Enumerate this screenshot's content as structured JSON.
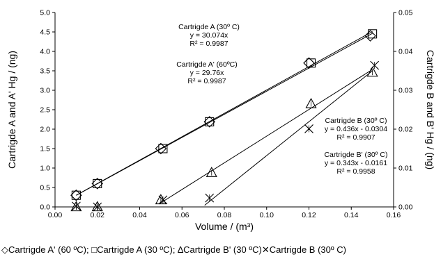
{
  "chart_data": {
    "type": "scatter",
    "title": "",
    "xlabel": "Volume / (m³)",
    "ylabel": "Cartrigde A and A' Hg / (ng)",
    "y2label": "Cartrigde B and B' Hg / (ng)",
    "xlim": [
      0,
      0.16
    ],
    "ylim": [
      0,
      5.0
    ],
    "y2lim": [
      0,
      0.05
    ],
    "x_ticks": [
      "0.00",
      "0.02",
      "0.04",
      "0.06",
      "0.08",
      "0.10",
      "0.12",
      "0.14",
      "0.16"
    ],
    "y_ticks": [
      "0.0",
      "0.5",
      "1.0",
      "1.5",
      "2.0",
      "2.5",
      "3.0",
      "3.5",
      "4.0",
      "4.5",
      "5.0"
    ],
    "y2_ticks": [
      "0.00",
      "0.01",
      "0.02",
      "0.03",
      "0.04",
      "0.05"
    ],
    "grid": false,
    "legend_position": "bottom",
    "series": [
      {
        "name": "Cartrigde A' (60 ºC)",
        "marker": "diamond",
        "axis": "left",
        "x": [
          0.01,
          0.02,
          0.05,
          0.073,
          0.12,
          0.149
        ],
        "y": [
          0.3,
          0.6,
          1.5,
          2.19,
          3.7,
          4.4
        ],
        "trend": {
          "slope": 29.76,
          "intercept": 0,
          "x_range": [
            0.01,
            0.15
          ]
        }
      },
      {
        "name": "Cartrigde A (30 ºC)",
        "marker": "square",
        "axis": "left",
        "x": [
          0.01,
          0.02,
          0.051,
          0.073,
          0.121,
          0.15
        ],
        "y": [
          0.3,
          0.6,
          1.5,
          2.19,
          3.7,
          4.45
        ],
        "trend": {
          "slope": 30.074,
          "intercept": 0,
          "x_range": [
            0.01,
            0.15
          ]
        }
      },
      {
        "name": "Cartrigde B' (30 ºC)",
        "marker": "triangle",
        "axis": "right",
        "x": [
          0.01,
          0.02,
          0.05,
          0.074,
          0.121,
          0.15
        ],
        "y": [
          0.0,
          0.0,
          0.0018,
          0.0088,
          0.0265,
          0.0346
        ],
        "trend": {
          "slope": 0.343,
          "intercept": -0.0161,
          "x_range": [
            0.0496,
            0.15
          ]
        }
      },
      {
        "name": "Cartrigde B (30º C)",
        "marker": "x",
        "axis": "right",
        "x": [
          0.01,
          0.02,
          0.051,
          0.073,
          0.12,
          0.151
        ],
        "y": [
          0.0002,
          0.0,
          0.0018,
          0.0023,
          0.0201,
          0.0364
        ],
        "trend": {
          "slope": 0.436,
          "intercept": -0.0304,
          "x_range": [
            0.0707,
            0.15
          ]
        }
      }
    ],
    "annotations": [
      {
        "lines": [
          "Cartrigde A (30º C)",
          "y = 30.074x",
          "R² = 0.9987"
        ]
      },
      {
        "lines": [
          "Cartrigde A' (60ºC)",
          "y = 29.76x",
          "R² = 0.9987"
        ]
      },
      {
        "lines": [
          "Cartrigde B (30º C)",
          "y = 0.436x - 0.0304",
          "R² = 0.9907"
        ]
      },
      {
        "lines": [
          "Cartrigde B' (30º C)",
          "y = 0.343x - 0.0161",
          "R² = 0.9958"
        ]
      }
    ],
    "legend_items": [
      {
        "symbol": "◇",
        "label": "Cartrigde A' (60 ºC);"
      },
      {
        "symbol": "□",
        "label": "Cartrigde A (30 ºC);"
      },
      {
        "symbol": "∆",
        "label": "Cartrigde B' (30 ºC)"
      },
      {
        "symbol": "✕",
        "label": "Cartrigde B (30º C)"
      }
    ]
  }
}
